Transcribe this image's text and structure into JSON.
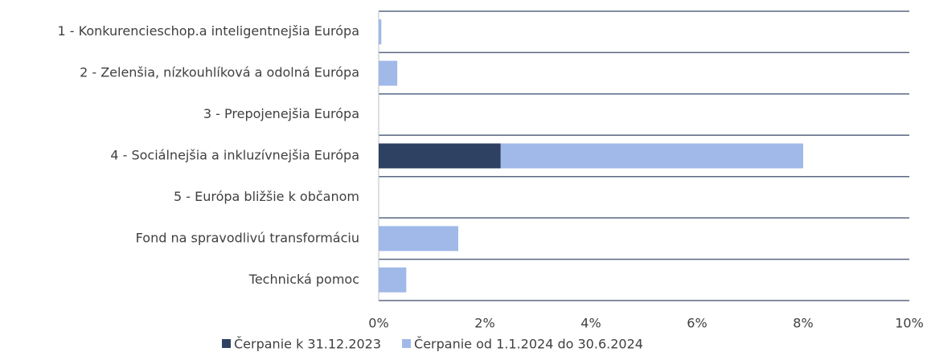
{
  "chart_data": {
    "type": "stacked-barh",
    "categories": [
      "1 - Konkurencieschop.a inteligentnejšia Európa",
      "2 - Zelenšia, nízkouhlíková a odolná Európa",
      "3 - Prepojenejšia Európa",
      "4 - Sociálnejšia a inkluzívnejšia Európa",
      "5 - Európa bližšie k občanom",
      "Fond na spravodlivú transformáciu",
      "Technická pomoc"
    ],
    "series": [
      {
        "name": "Čerpanie k 31.12.2023",
        "color": "#2e4163",
        "values": [
          0,
          0,
          0,
          2.3,
          0,
          0,
          0
        ]
      },
      {
        "name": "Čerpanie od 1.1.2024 do 30.6.2024",
        "color": "#a0b9e8",
        "values": [
          0.05,
          0.35,
          0,
          5.7,
          0,
          1.5,
          0.52
        ]
      }
    ],
    "xlim": [
      0,
      10
    ],
    "xticks": [
      {
        "value": 0,
        "label": "0%"
      },
      {
        "value": 2,
        "label": "2%"
      },
      {
        "value": 4,
        "label": "4%"
      },
      {
        "value": 6,
        "label": "6%"
      },
      {
        "value": 8,
        "label": "8%"
      },
      {
        "value": 10,
        "label": "10%"
      }
    ],
    "legend": "bottom"
  }
}
